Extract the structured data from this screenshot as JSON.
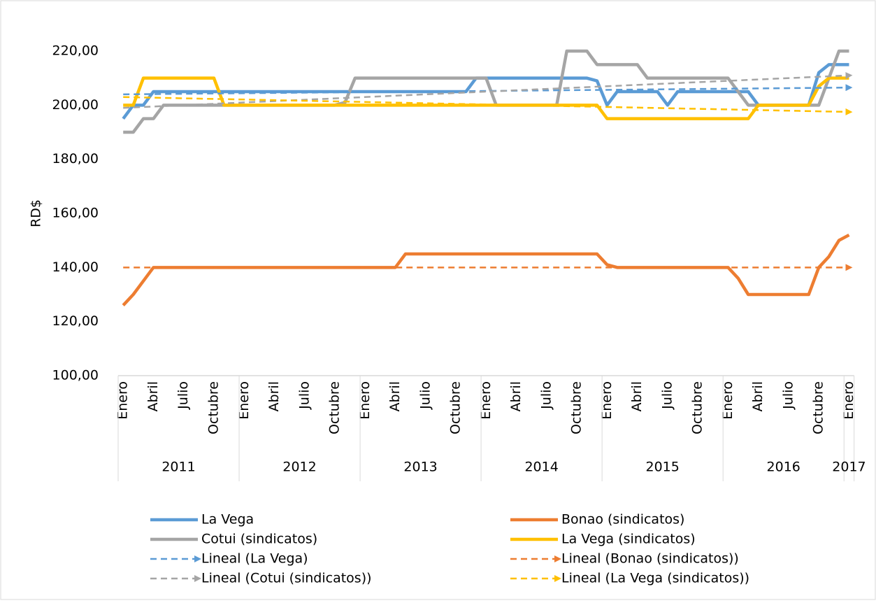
{
  "chart_data": {
    "type": "line",
    "y_label": "RD$",
    "categories": [
      "Enero",
      null,
      null,
      "Abril",
      null,
      null,
      "Julio",
      null,
      null,
      "Octubre",
      null,
      null,
      "Enero",
      null,
      null,
      "Abril",
      null,
      null,
      "Julio",
      null,
      null,
      "Octubre",
      null,
      null,
      "Enero",
      null,
      null,
      "Abril",
      null,
      null,
      "Julio",
      null,
      null,
      "Octubre",
      null,
      null,
      "Enero",
      null,
      null,
      "Abril",
      null,
      null,
      "Julio",
      null,
      null,
      "Octubre",
      null,
      null,
      "Enero",
      null,
      null,
      "Abril",
      null,
      null,
      "Julio",
      null,
      null,
      "Octubre",
      null,
      null,
      "Enero",
      null,
      null,
      "Abril",
      null,
      null,
      "Julio",
      null,
      null,
      "Octubre",
      null,
      null,
      "Enero"
    ],
    "years": [
      "2011",
      "2012",
      "2013",
      "2014",
      "2015",
      "2016",
      "2017"
    ],
    "ylim": [
      100,
      220
    ],
    "yticks": [
      {
        "value": 100,
        "label": "100,00"
      },
      {
        "value": 120,
        "label": "120,00"
      },
      {
        "value": 140,
        "label": "140,00"
      },
      {
        "value": 160,
        "label": "160,00"
      },
      {
        "value": 180,
        "label": "180,00"
      },
      {
        "value": 200,
        "label": "200,00"
      },
      {
        "value": 220,
        "label": "220,00"
      }
    ],
    "series": [
      {
        "name": "La Vega",
        "color": "#5b9bd5",
        "values": [
          195,
          200,
          200,
          205,
          205,
          205,
          205,
          205,
          205,
          205,
          205,
          205,
          205,
          205,
          205,
          205,
          205,
          205,
          205,
          205,
          205,
          205,
          205,
          205,
          205,
          205,
          205,
          205,
          205,
          205,
          205,
          205,
          205,
          205,
          205,
          210,
          210,
          210,
          210,
          210,
          210,
          210,
          210,
          210,
          210,
          210,
          210,
          209,
          200,
          205,
          205,
          205,
          205,
          205,
          200,
          205,
          205,
          205,
          205,
          205,
          205,
          205,
          205,
          200,
          200,
          200,
          200,
          200,
          200,
          212,
          215,
          215,
          215
        ]
      },
      {
        "name": "Bonao (sindicatos)",
        "color": "#ed7d31",
        "values": [
          126,
          130,
          135,
          140,
          140,
          140,
          140,
          140,
          140,
          140,
          140,
          140,
          140,
          140,
          140,
          140,
          140,
          140,
          140,
          140,
          140,
          140,
          140,
          140,
          140,
          140,
          140,
          140,
          145,
          145,
          145,
          145,
          145,
          145,
          145,
          145,
          145,
          145,
          145,
          145,
          145,
          145,
          145,
          145,
          145,
          145,
          145,
          145,
          141,
          140,
          140,
          140,
          140,
          140,
          140,
          140,
          140,
          140,
          140,
          140,
          140,
          136,
          130,
          130,
          130,
          130,
          130,
          130,
          130,
          140,
          144,
          150,
          152
        ]
      },
      {
        "name": "Cotui (sindicatos)",
        "color": "#a5a5a5",
        "values": [
          190,
          190,
          195,
          195,
          200,
          200,
          200,
          200,
          200,
          200,
          200,
          200,
          200,
          200,
          200,
          200,
          200,
          200,
          200,
          200,
          200,
          200,
          201,
          210,
          210,
          210,
          210,
          210,
          210,
          210,
          210,
          210,
          210,
          210,
          210,
          210,
          210,
          200,
          200,
          200,
          200,
          200,
          200,
          200,
          220,
          220,
          220,
          215,
          215,
          215,
          215,
          215,
          210,
          210,
          210,
          210,
          210,
          210,
          210,
          210,
          210,
          205,
          200,
          200,
          200,
          200,
          200,
          200,
          200,
          200,
          210,
          220,
          220
        ]
      },
      {
        "name": "La Vega (sindicatos)",
        "color": "#ffc000",
        "values": [
          200,
          200,
          210,
          210,
          210,
          210,
          210,
          210,
          210,
          210,
          200,
          200,
          200,
          200,
          200,
          200,
          200,
          200,
          200,
          200,
          200,
          200,
          200,
          200,
          200,
          200,
          200,
          200,
          200,
          200,
          200,
          200,
          200,
          200,
          200,
          200,
          200,
          200,
          200,
          200,
          200,
          200,
          200,
          200,
          200,
          200,
          200,
          200,
          195,
          195,
          195,
          195,
          195,
          195,
          195,
          195,
          195,
          195,
          195,
          195,
          195,
          195,
          195,
          200,
          200,
          200,
          200,
          200,
          200,
          207,
          210,
          210,
          210
        ]
      }
    ],
    "trendlines": [
      {
        "name": "Lineal (La Vega)",
        "color": "#5b9bd5",
        "values": [
          204,
          206.5
        ]
      },
      {
        "name": "Lineal (Bonao (sindicatos))",
        "color": "#ed7d31",
        "values": [
          140,
          140
        ]
      },
      {
        "name": "Lineal (Cotui (sindicatos))",
        "color": "#a5a5a5",
        "values": [
          199,
          211
        ]
      },
      {
        "name": "Lineal (La Vega (sindicatos))",
        "color": "#ffc000",
        "values": [
          203,
          197.5
        ]
      }
    ]
  }
}
